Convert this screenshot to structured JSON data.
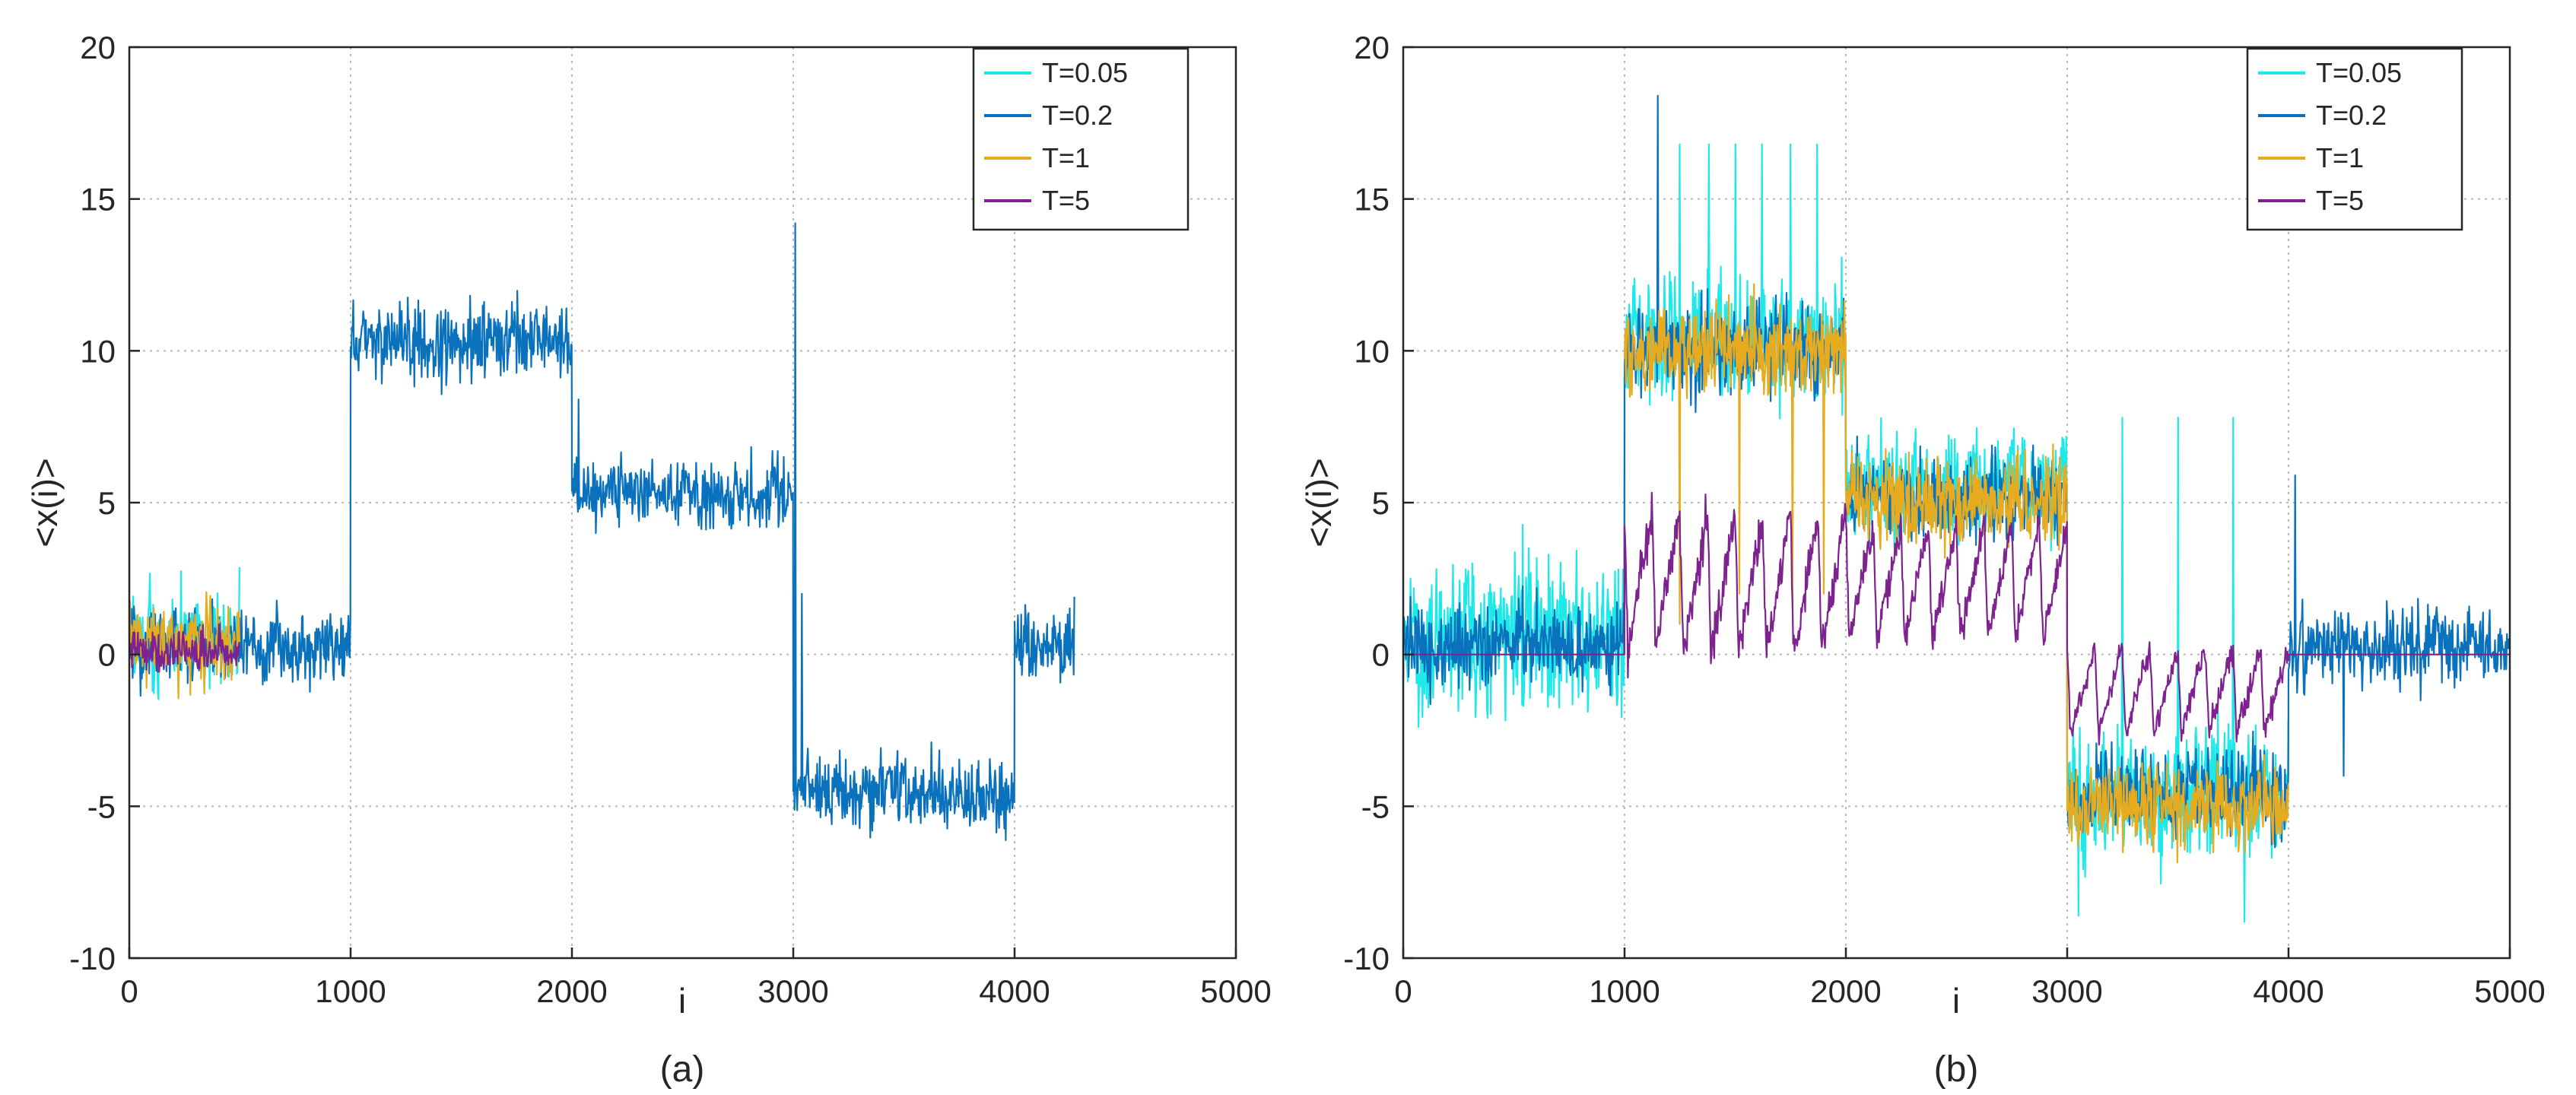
{
  "figure": {
    "panels": [
      "(a)",
      "(b)"
    ]
  },
  "chart_data": [
    {
      "type": "line",
      "caption": "(a)",
      "xlabel": "i",
      "ylabel": "<x(i)>",
      "xlim": [
        0,
        5000
      ],
      "ylim": [
        -10,
        20
      ],
      "xticks": [
        0,
        1000,
        2000,
        3000,
        4000,
        5000
      ],
      "yticks": [
        -10,
        -5,
        0,
        5,
        10,
        15,
        20
      ],
      "xtick_labels": [
        "0",
        "1000",
        "2000",
        "3000",
        "4000",
        "5000"
      ],
      "ytick_labels": [
        "-10",
        "-5",
        "0",
        "5",
        "10",
        "15",
        "20"
      ],
      "grid": true,
      "legend_position": "top-right",
      "series": [
        {
          "name": "T=0.05",
          "color": "#1fe8e8",
          "segments": [
            {
              "x0": 0,
              "x1": 500,
              "mean": 0.5,
              "noise": 1.2
            }
          ]
        },
        {
          "name": "T=0.2",
          "color": "#0a72bd",
          "segments": [
            {
              "x0": 0,
              "x1": 1000,
              "mean": 0.3,
              "noise": 0.9
            },
            {
              "x0": 1000,
              "x1": 2000,
              "mean": 10.3,
              "noise": 0.9
            },
            {
              "x0": 2000,
              "x1": 3000,
              "mean": 5.3,
              "noise": 0.8
            },
            {
              "x0": 3000,
              "x1": 4000,
              "mean": -4.6,
              "noise": 0.9
            },
            {
              "x0": 4000,
              "x1": 4270,
              "mean": 0.3,
              "noise": 0.8
            }
          ],
          "spikes": [
            [
              2030,
              8.4
            ],
            [
              3010,
              14.2
            ],
            [
              3040,
              2.0
            ]
          ]
        },
        {
          "name": "T=1",
          "color": "#e6ab1e",
          "segments": [
            {
              "x0": 0,
              "x1": 500,
              "mean": 0.4,
              "noise": 0.9
            }
          ]
        },
        {
          "name": "T=5",
          "color": "#7e2290",
          "segments": [
            {
              "x0": 0,
              "x1": 500,
              "mean": 0.1,
              "noise": 0.5
            }
          ]
        }
      ]
    },
    {
      "type": "line",
      "caption": "(b)",
      "xlabel": "i",
      "ylabel": "<x(i)>",
      "xlim": [
        0,
        5000
      ],
      "ylim": [
        -10,
        20
      ],
      "xticks": [
        0,
        1000,
        2000,
        3000,
        4000,
        5000
      ],
      "yticks": [
        -10,
        -5,
        0,
        5,
        10,
        15,
        20
      ],
      "xtick_labels": [
        "0",
        "1000",
        "2000",
        "3000",
        "4000",
        "5000"
      ],
      "ytick_labels": [
        "-10",
        "-5",
        "0",
        "5",
        "10",
        "15",
        "20"
      ],
      "grid": true,
      "legend_position": "top-right",
      "series": [
        {
          "name": "T=0.05",
          "color": "#1fe8e8",
          "segments": [
            {
              "x0": 0,
              "x1": 1000,
              "mean": 0.6,
              "noise": 1.8
            },
            {
              "x0": 1000,
              "x1": 2000,
              "mean": 10.3,
              "noise": 1.5
            },
            {
              "x0": 2000,
              "x1": 3000,
              "mean": 5.5,
              "noise": 1.3
            },
            {
              "x0": 3000,
              "x1": 4000,
              "mean": -4.6,
              "noise": 1.6
            }
          ],
          "spikes": [
            [
              1250,
              16.8
            ],
            [
              1380,
              16.8
            ],
            [
              1500,
              16.8
            ],
            [
              1620,
              16.8
            ],
            [
              1750,
              16.8
            ],
            [
              1870,
              16.8
            ],
            [
              3250,
              7.8
            ],
            [
              3500,
              7.8
            ],
            [
              3750,
              7.8
            ],
            [
              3050,
              -8.6
            ],
            [
              3800,
              -8.8
            ]
          ]
        },
        {
          "name": "T=0.2",
          "color": "#0a72bd",
          "segments": [
            {
              "x0": 0,
              "x1": 1000,
              "mean": 0.3,
              "noise": 1.0
            },
            {
              "x0": 1000,
              "x1": 2000,
              "mean": 10.0,
              "noise": 1.1
            },
            {
              "x0": 2000,
              "x1": 3000,
              "mean": 5.2,
              "noise": 1.0
            },
            {
              "x0": 3000,
              "x1": 4000,
              "mean": -4.6,
              "noise": 1.0
            },
            {
              "x0": 4000,
              "x1": 5000,
              "mean": 0.3,
              "noise": 0.9
            }
          ],
          "spikes": [
            [
              1150,
              18.4
            ],
            [
              4030,
              5.9
            ],
            [
              4250,
              -4.0
            ]
          ]
        },
        {
          "name": "T=1",
          "color": "#e6ab1e",
          "segments": [
            {
              "x0": 1000,
              "x1": 2000,
              "mean": 10.0,
              "noise": 1.0
            },
            {
              "x0": 2000,
              "x1": 3000,
              "mean": 5.0,
              "noise": 1.0
            },
            {
              "x0": 3000,
              "x1": 4000,
              "mean": -5.0,
              "noise": 1.0
            }
          ],
          "spikes": [
            [
              1250,
              1.0
            ],
            [
              1520,
              2.0
            ],
            [
              1760,
              1.5
            ],
            [
              1900,
              2.0
            ]
          ]
        },
        {
          "name": "T=5",
          "color": "#7e2290",
          "segments": [
            {
              "x0": 0,
              "x1": 1000,
              "mean": 0.0,
              "noise": 0.0
            },
            {
              "x0": 1000,
              "x1": 2000,
              "mean": 2.8,
              "noise": 0.5,
              "sawtooth": [
                0,
                4.6
              ],
              "period": 125
            },
            {
              "x0": 2000,
              "x1": 3000,
              "mean": 2.2,
              "noise": 0.4,
              "sawtooth": [
                0.5,
                4.2
              ],
              "period": 125
            },
            {
              "x0": 3000,
              "x1": 4000,
              "mean": -1.8,
              "noise": 0.3,
              "sawtooth": [
                -2.6,
                0.2
              ],
              "period": 125
            },
            {
              "x0": 4000,
              "x1": 5000,
              "mean": 0.0,
              "noise": 0.0
            }
          ]
        }
      ]
    }
  ]
}
